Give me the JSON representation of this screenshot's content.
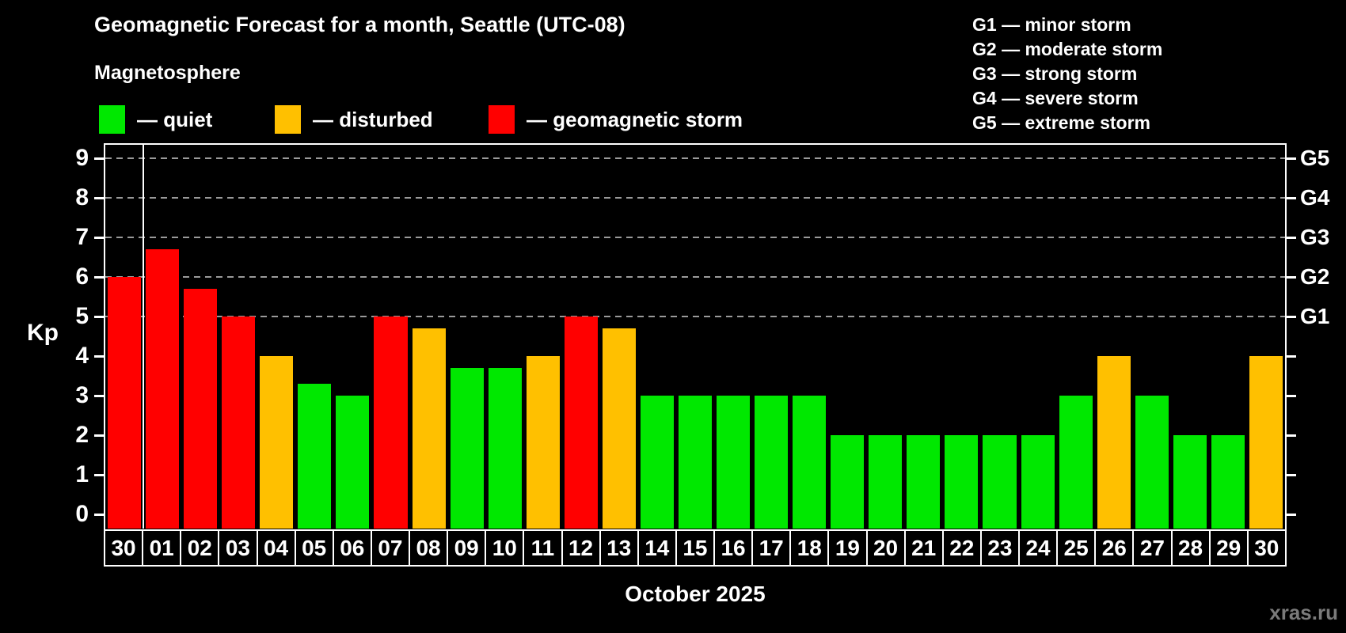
{
  "header": {
    "title": "Geomagnetic Forecast for a month, Seattle (UTC-08)",
    "subtitle": "Magnetosphere",
    "legend": [
      {
        "name": "quiet",
        "label": "— quiet",
        "color": "#00e800"
      },
      {
        "name": "disturbed",
        "label": "— disturbed",
        "color": "#ffc000"
      },
      {
        "name": "storm",
        "label": "— geomagnetic storm",
        "color": "#ff0000"
      }
    ]
  },
  "g_scale_legend": [
    "G1 — minor storm",
    "G2 — moderate storm",
    "G3 — strong storm",
    "G4 — severe storm",
    "G5 — extreme storm"
  ],
  "footer": {
    "month_label": "October 2025",
    "watermark": "xras.ru"
  },
  "chart_data": {
    "type": "bar",
    "title": "Geomagnetic Forecast for a month, Seattle (UTC-08)",
    "ylabel": "Kp",
    "xlabel": "October 2025",
    "ylim": [
      0,
      9.35
    ],
    "yticks": [
      0,
      1,
      2,
      3,
      4,
      5,
      6,
      7,
      8,
      9
    ],
    "grid": "horizontal dashed gray lines at Kp 5-9 (G storm levels)",
    "gridlines_at_kp": [
      5,
      6,
      7,
      8,
      9
    ],
    "right_axis_labels": [
      {
        "kp": 5,
        "label": "G1"
      },
      {
        "kp": 6,
        "label": "G2"
      },
      {
        "kp": 7,
        "label": "G3"
      },
      {
        "kp": 8,
        "label": "G4"
      },
      {
        "kp": 9,
        "label": "G5"
      }
    ],
    "legend_position": "top-left",
    "month_separator_after_index": 0,
    "categories": [
      "30",
      "01",
      "02",
      "03",
      "04",
      "05",
      "06",
      "07",
      "08",
      "09",
      "10",
      "11",
      "12",
      "13",
      "14",
      "15",
      "16",
      "17",
      "18",
      "19",
      "20",
      "21",
      "22",
      "23",
      "24",
      "25",
      "26",
      "27",
      "28",
      "29",
      "30"
    ],
    "values": [
      6.0,
      6.7,
      5.7,
      5.0,
      4.0,
      3.3,
      3.0,
      5.0,
      4.7,
      3.7,
      3.7,
      4.0,
      5.0,
      4.7,
      3.0,
      3.0,
      3.0,
      3.0,
      3.0,
      2.0,
      2.0,
      2.0,
      2.0,
      2.0,
      2.0,
      3.0,
      4.0,
      3.0,
      2.0,
      2.0,
      4.0
    ],
    "states": [
      "storm",
      "storm",
      "storm",
      "storm",
      "disturbed",
      "quiet",
      "quiet",
      "storm",
      "disturbed",
      "quiet",
      "quiet",
      "disturbed",
      "storm",
      "disturbed",
      "quiet",
      "quiet",
      "quiet",
      "quiet",
      "quiet",
      "quiet",
      "quiet",
      "quiet",
      "quiet",
      "quiet",
      "quiet",
      "quiet",
      "disturbed",
      "quiet",
      "quiet",
      "quiet",
      "disturbed"
    ],
    "state_colors": {
      "quiet": "#00e800",
      "disturbed": "#ffc000",
      "storm": "#ff0000"
    }
  }
}
